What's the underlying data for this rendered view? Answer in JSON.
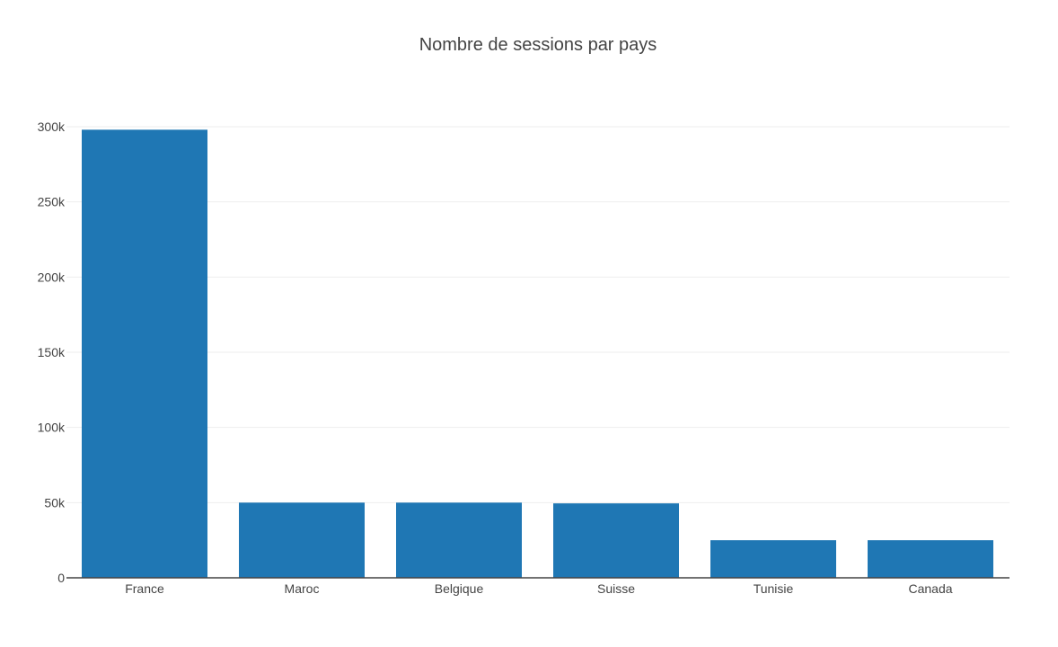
{
  "chart_data": {
    "type": "bar",
    "title": "Nombre de sessions par pays",
    "xlabel": "",
    "ylabel": "",
    "categories": [
      "France",
      "Maroc",
      "Belgique",
      "Suisse",
      "Tunisie",
      "Canada"
    ],
    "values": [
      298000,
      50000,
      50000,
      49500,
      25000,
      25000
    ],
    "ylim": [
      0,
      300000
    ],
    "yticks": [
      0,
      50000,
      100000,
      150000,
      200000,
      250000,
      300000
    ],
    "ytick_labels": [
      "0",
      "50k",
      "100k",
      "150k",
      "200k",
      "250k",
      "300k"
    ],
    "grid": true,
    "legend": "none",
    "bar_color": "#1f77b4"
  }
}
